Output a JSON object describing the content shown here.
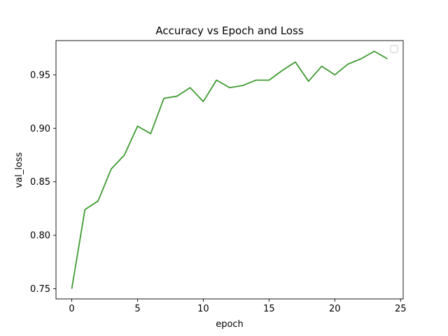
{
  "chart_data": {
    "type": "line",
    "title": "Accuracy vs Epoch and Loss",
    "xlabel": "epoch",
    "ylabel": "val_loss",
    "xlim": [
      -1.2,
      25.2
    ],
    "ylim": [
      0.7405,
      0.982
    ],
    "xticks": [
      0,
      5,
      10,
      15,
      20,
      25
    ],
    "yticks": [
      0.75,
      0.8,
      0.85,
      0.9,
      0.95
    ],
    "ytick_labels": [
      "0.75",
      "0.80",
      "0.85",
      "0.90",
      "0.95"
    ],
    "grid": false,
    "legend": {
      "placement": "upper-right",
      "entries": []
    },
    "series": [
      {
        "color": "#3f9a32",
        "x": [
          0,
          1,
          2,
          3,
          4,
          5,
          6,
          7,
          8,
          9,
          10,
          11,
          12,
          13,
          14,
          15,
          16,
          17,
          18,
          19,
          20,
          21,
          22,
          23,
          24
        ],
        "values": [
          0.75,
          0.824,
          0.832,
          0.862,
          0.875,
          0.902,
          0.895,
          0.928,
          0.93,
          0.938,
          0.925,
          0.945,
          0.938,
          0.94,
          0.945,
          0.945,
          0.954,
          0.962,
          0.944,
          0.958,
          0.95,
          0.96,
          0.965,
          0.972,
          0.965
        ]
      }
    ]
  }
}
